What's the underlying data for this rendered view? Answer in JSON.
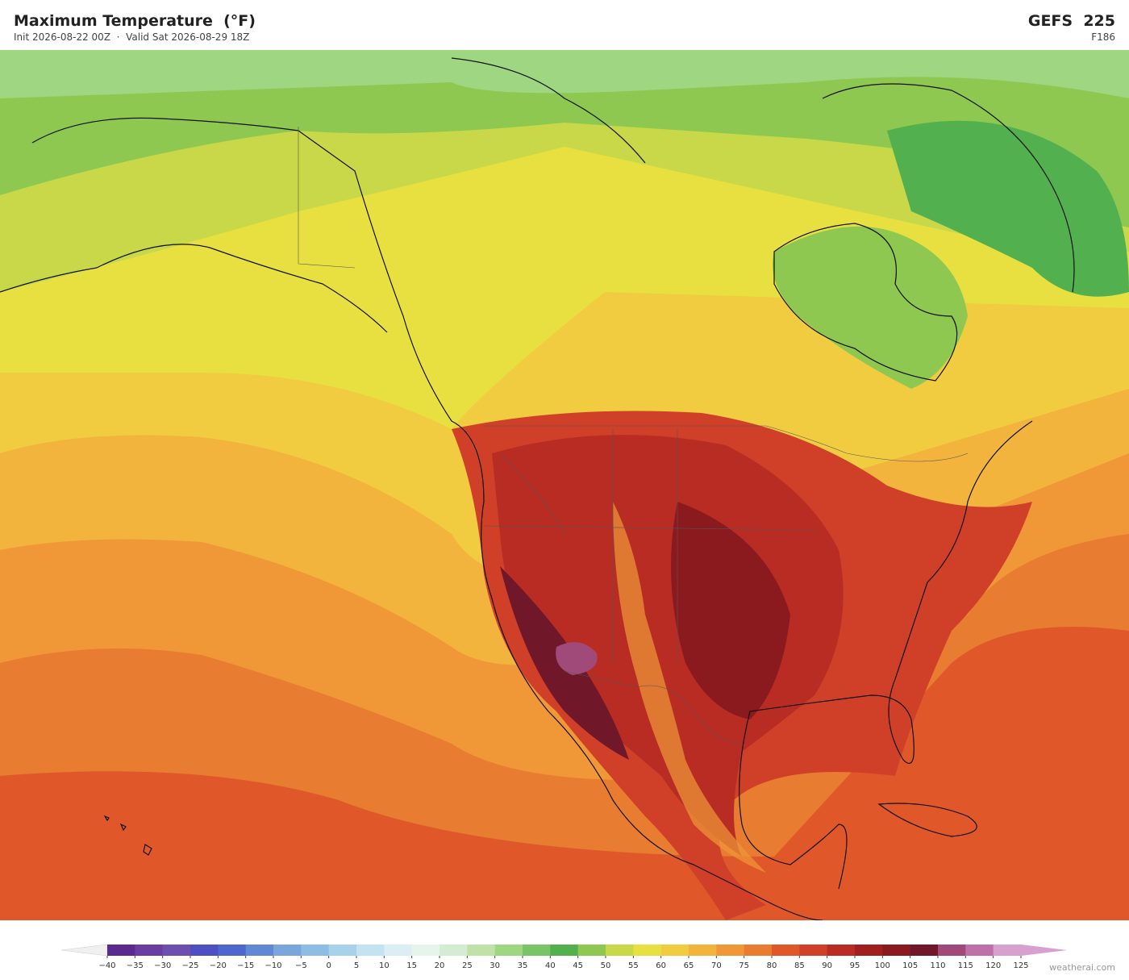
{
  "header": {
    "title": "Maximum Temperature  (°F)",
    "subtitle": "Init 2026-08-22 00Z  ·  Valid Sat 2026-08-29 18Z",
    "model": "GEFS  225",
    "forecast_hour": "F186"
  },
  "colorbar": {
    "ticks": [
      {
        "value": -40,
        "label": "−40"
      },
      {
        "value": -35,
        "label": "−35"
      },
      {
        "value": -30,
        "label": "−30"
      },
      {
        "value": -25,
        "label": "−25"
      },
      {
        "value": -20,
        "label": "−20"
      },
      {
        "value": -15,
        "label": "−15"
      },
      {
        "value": -10,
        "label": "−10"
      },
      {
        "value": -5,
        "label": "−5"
      },
      0,
      5,
      10,
      15,
      20,
      25,
      30,
      35,
      40,
      45,
      50,
      55,
      60,
      65,
      70,
      75,
      80,
      85,
      90,
      95,
      100,
      105,
      110,
      115,
      120,
      125
    ],
    "colors": [
      "#5b2a8e",
      "#6a3ea0",
      "#6d4fb0",
      "#4c50c0",
      "#4f66cc",
      "#6088d4",
      "#7aa6dc",
      "#8dbde4",
      "#a8d2ea",
      "#c4e3f0",
      "#daeef4",
      "#e6f4ec",
      "#d4ecd2",
      "#bfe2a8",
      "#9fd682",
      "#78c466",
      "#52b04e",
      "#8ec850",
      "#c8d848",
      "#e8e040",
      "#f2cc40",
      "#f2b43c",
      "#f09838",
      "#e87c30",
      "#e0582a",
      "#d04028",
      "#b82c24",
      "#a02020",
      "#8a1a1e",
      "#70182a",
      "#a04a7a",
      "#c070a8",
      "#d8a0cc"
    ],
    "under_color": "#f0f0f0",
    "over_color": "#d8a0d0"
  },
  "footer": {
    "credit": "weatherai.com"
  }
}
